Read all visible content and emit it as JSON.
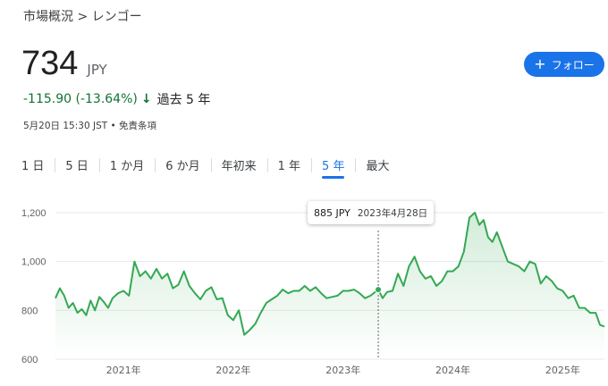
{
  "breadcrumb": "市場概況 > レンゴー",
  "quote": {
    "price": "734",
    "currency": "JPY",
    "change": "-115.90 (-13.64%)",
    "period": "過去 5 年",
    "timestamp": "5月20日 15:30 JST • 免責条項"
  },
  "follow_button": {
    "label": "フォロー",
    "icon": "plus-icon"
  },
  "tabs": [
    {
      "label": "1 日"
    },
    {
      "label": "5 日"
    },
    {
      "label": "1 か月"
    },
    {
      "label": "6 か月"
    },
    {
      "label": "年初来"
    },
    {
      "label": "1 年"
    },
    {
      "label": "5 年",
      "active": true
    },
    {
      "label": "最大"
    }
  ],
  "tooltip": {
    "value": "885 JPY",
    "date": "2023年4月28日"
  },
  "colors": {
    "line": "#34a853",
    "accent": "#1a73e8",
    "negative": "#137333"
  },
  "chart_data": {
    "type": "area",
    "y_ticks": [
      "1,200",
      "1,000",
      "800",
      "600"
    ],
    "x_ticks": [
      "2021年",
      "2022年",
      "2023年",
      "2024年",
      "2025年"
    ],
    "ylim": [
      600,
      1200
    ],
    "xlim": [
      2020.38,
      2025.38
    ],
    "highlight": {
      "x": 2023.32,
      "y": 885
    },
    "series": [
      {
        "x": [
          2020.38,
          2020.42,
          2020.46,
          2020.5,
          2020.54,
          2020.58,
          2020.62,
          2020.66,
          2020.7,
          2020.74,
          2020.78,
          2020.82,
          2020.86,
          2020.9,
          2020.95,
          2021.0,
          2021.05,
          2021.1,
          2021.15,
          2021.2,
          2021.25,
          2021.3,
          2021.35,
          2021.4,
          2021.45,
          2021.5,
          2021.55,
          2021.6,
          2021.65,
          2021.7,
          2021.75,
          2021.8,
          2021.85,
          2021.9,
          2021.95,
          2022.0,
          2022.05,
          2022.1,
          2022.15,
          2022.2,
          2022.25,
          2022.3,
          2022.35,
          2022.4,
          2022.45,
          2022.5,
          2022.55,
          2022.6,
          2022.65,
          2022.7,
          2022.75,
          2022.8,
          2022.85,
          2022.9,
          2022.95,
          2023.0,
          2023.05,
          2023.1,
          2023.15,
          2023.2,
          2023.25,
          2023.32,
          2023.36,
          2023.4,
          2023.45,
          2023.5,
          2023.55,
          2023.6,
          2023.65,
          2023.7,
          2023.75,
          2023.8,
          2023.85,
          2023.9,
          2023.95,
          2024.0,
          2024.05,
          2024.1,
          2024.15,
          2024.2,
          2024.24,
          2024.28,
          2024.32,
          2024.36,
          2024.4,
          2024.45,
          2024.5,
          2024.55,
          2024.6,
          2024.65,
          2024.7,
          2024.75,
          2024.8,
          2024.85,
          2024.9,
          2024.95,
          2025.0,
          2025.05,
          2025.1,
          2025.15,
          2025.2,
          2025.25,
          2025.3,
          2025.34,
          2025.38
        ],
        "y": [
          850,
          890,
          860,
          810,
          830,
          790,
          805,
          780,
          840,
          800,
          855,
          835,
          810,
          850,
          870,
          880,
          860,
          1000,
          940,
          960,
          930,
          970,
          930,
          950,
          890,
          905,
          960,
          900,
          870,
          845,
          880,
          895,
          845,
          850,
          780,
          760,
          800,
          700,
          720,
          745,
          790,
          830,
          845,
          860,
          885,
          870,
          880,
          880,
          900,
          880,
          895,
          870,
          850,
          855,
          860,
          880,
          880,
          885,
          870,
          850,
          860,
          885,
          850,
          875,
          880,
          950,
          900,
          980,
          1020,
          960,
          930,
          940,
          900,
          920,
          960,
          960,
          980,
          1040,
          1180,
          1200,
          1150,
          1170,
          1100,
          1080,
          1120,
          1060,
          1000,
          990,
          980,
          960,
          1000,
          990,
          910,
          940,
          920,
          890,
          880,
          850,
          860,
          810,
          810,
          790,
          790,
          740,
          734
        ]
      }
    ]
  }
}
